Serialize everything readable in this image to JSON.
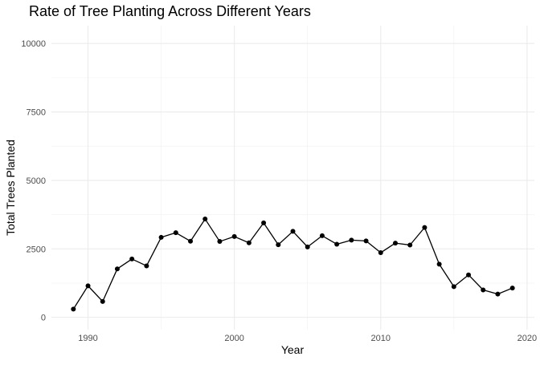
{
  "chart_data": {
    "type": "line",
    "title": "Rate of Tree Planting Across Different Years",
    "xlabel": "Year",
    "ylabel": "Total Trees Planted",
    "xlim": [
      1987.5,
      2020.5
    ],
    "ylim": [
      -450,
      10650
    ],
    "xticks": [
      1990,
      2000,
      2010,
      2020
    ],
    "yticks": [
      0,
      2500,
      5000,
      7500,
      10000
    ],
    "grid": true,
    "legend": "none",
    "series": [
      {
        "color": "#000000",
        "x": [
          1989,
          1990,
          1991,
          1992,
          1993,
          1994,
          1995,
          1996,
          1997,
          1998,
          1999,
          2000,
          2001,
          2002,
          2003,
          2004,
          2005,
          2006,
          2007,
          2008,
          2009,
          2010,
          2011,
          2012,
          2013,
          2014,
          2015,
          2016,
          2017,
          2018,
          2019
        ],
        "y": [
          300,
          1150,
          580,
          1770,
          2130,
          1880,
          2920,
          3090,
          2780,
          3590,
          2770,
          2950,
          2720,
          3450,
          2650,
          3140,
          2570,
          2980,
          2670,
          2820,
          2790,
          2360,
          2710,
          2640,
          3280,
          1940,
          1120,
          1550,
          1000,
          850,
          1070
        ]
      }
    ]
  }
}
